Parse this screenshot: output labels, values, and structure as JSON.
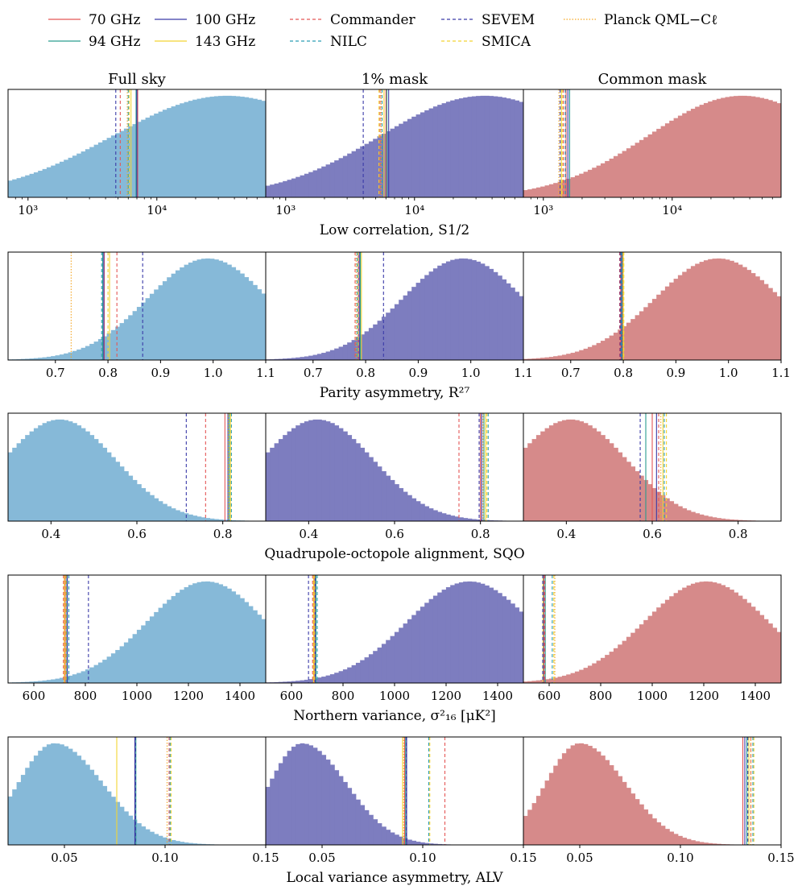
{
  "legend": [
    {
      "label": "70 GHz",
      "color": "#e45756",
      "dash": "solid"
    },
    {
      "label": "94 GHz",
      "color": "#2a9d8f",
      "dash": "solid"
    },
    {
      "label": "100 GHz",
      "color": "#3a3aa8",
      "dash": "solid"
    },
    {
      "label": "143 GHz",
      "color": "#f2d433",
      "dash": "solid"
    },
    {
      "label": "Commander",
      "color": "#e45756",
      "dash": "dashed"
    },
    {
      "label": "NILC",
      "color": "#2a9db4",
      "dash": "dashed"
    },
    {
      "label": "SEVEM",
      "color": "#3a3aa8",
      "dash": "dashed"
    },
    {
      "label": "SMICA",
      "color": "#f2d433",
      "dash": "dashed"
    },
    {
      "label": "Planck QML−Cℓ",
      "color": "#f5a623",
      "dash": "dotted"
    }
  ],
  "column_titles": [
    "Full sky",
    "1% mask",
    "Common mask"
  ],
  "column_colors": [
    "#86b9d8",
    "#7d7dbf",
    "#d68a8a"
  ],
  "chart_data": [
    {
      "type": "histogram",
      "statistic": "Low correlation, S1/2",
      "xlabel": "Low correlation, S1/2",
      "xscale": "log",
      "xlim": [
        700,
        70000
      ],
      "ticks": [
        1000,
        10000
      ],
      "tick_labels": [
        "10³",
        "10⁴"
      ],
      "panels": [
        {
          "column": "Full sky",
          "dist": {
            "center": 35000,
            "width": 2.3,
            "log": true
          },
          "lines": {
            "70 GHz": 7100,
            "94 GHz": 6900,
            "100 GHz": 7000,
            "143 GHz": 6300,
            "Commander": 5200,
            "NILC": 6000,
            "SEVEM": 4800,
            "SMICA": 6100,
            "Planck QML−Cℓ": 5900
          }
        },
        {
          "column": "1% mask",
          "dist": {
            "center": 35000,
            "width": 2.1,
            "log": true
          },
          "lines": {
            "70 GHz": 6000,
            "94 GHz": 6100,
            "100 GHz": 6300,
            "143 GHz": 5800,
            "Commander": 5400,
            "NILC": 5600,
            "SEVEM": 4000,
            "SMICA": 5300,
            "Planck QML−Cℓ": 5500
          }
        },
        {
          "column": "Common mask",
          "dist": {
            "center": 35000,
            "width": 1.9,
            "log": true
          },
          "lines": {
            "70 GHz": 1500,
            "94 GHz": 1600,
            "100 GHz": 1550,
            "143 GHz": 1380,
            "Commander": 1430,
            "NILC": 1480,
            "SEVEM": 1350,
            "SMICA": 1400,
            "Planck QML−Cℓ": 1320
          }
        }
      ]
    },
    {
      "type": "histogram",
      "statistic": "Parity asymmetry, R27",
      "xlabel": "Parity asymmetry, R²⁷",
      "xscale": "linear",
      "xlim": [
        0.61,
        1.1
      ],
      "ticks": [
        0.7,
        0.8,
        0.9,
        1.0,
        1.1
      ],
      "tick_labels": [
        "0.7",
        "0.8",
        "0.9",
        "1.0",
        "1.1"
      ],
      "panels": [
        {
          "column": "Full sky",
          "dist": {
            "center": 0.99,
            "width": 0.115
          },
          "lines": {
            "70 GHz": 0.793,
            "94 GHz": 0.79,
            "100 GHz": 0.792,
            "143 GHz": 0.803,
            "Commander": 0.817,
            "NILC": 0.788,
            "SEVEM": 0.866,
            "SMICA": 0.8,
            "Planck QML−Cℓ": 0.73
          }
        },
        {
          "column": "1% mask",
          "dist": {
            "center": 0.985,
            "width": 0.115
          },
          "lines": {
            "70 GHz": 0.786,
            "94 GHz": 0.79,
            "100 GHz": 0.788,
            "143 GHz": 0.792,
            "Commander": 0.78,
            "NILC": 0.784,
            "SEVEM": 0.834,
            "SMICA": 0.786,
            "Planck QML−Cℓ": 0.782
          }
        },
        {
          "column": "Common mask",
          "dist": {
            "center": 0.98,
            "width": 0.12
          },
          "lines": {
            "70 GHz": 0.795,
            "94 GHz": 0.798,
            "100 GHz": 0.797,
            "143 GHz": 0.8,
            "Commander": 0.793,
            "NILC": 0.796,
            "SEVEM": 0.794,
            "SMICA": 0.801,
            "Planck QML−Cℓ": 0.799
          }
        }
      ]
    },
    {
      "type": "histogram",
      "statistic": "Quadrupole-octopole alignment, SQO",
      "xlabel": "Quadrupole-octopole alignment, SQO",
      "xscale": "linear",
      "xlim": [
        0.3,
        0.9
      ],
      "ticks": [
        0.4,
        0.6,
        0.8
      ],
      "tick_labels": [
        "0.4",
        "0.6",
        "0.8"
      ],
      "panels": [
        {
          "column": "Full sky",
          "dist": {
            "center": 0.42,
            "width": 0.13
          },
          "lines": {
            "70 GHz": 0.805,
            "94 GHz": 0.815,
            "100 GHz": 0.812,
            "143 GHz": 0.818,
            "Commander": 0.76,
            "NILC": 0.82,
            "SEVEM": 0.715,
            "SMICA": 0.817,
            "Planck QML−Cℓ": 0.813
          }
        },
        {
          "column": "1% mask",
          "dist": {
            "center": 0.42,
            "width": 0.13
          },
          "lines": {
            "70 GHz": 0.8,
            "94 GHz": 0.808,
            "100 GHz": 0.803,
            "143 GHz": 0.812,
            "Commander": 0.75,
            "NILC": 0.818,
            "SEVEM": 0.797,
            "SMICA": 0.815,
            "Planck QML−Cℓ": 0.806
          }
        },
        {
          "column": "Common mask",
          "dist": {
            "center": 0.41,
            "width": 0.13
          },
          "lines": {
            "70 GHz": 0.6,
            "94 GHz": 0.585,
            "100 GHz": 0.61,
            "143 GHz": 0.625,
            "Commander": 0.615,
            "NILC": 0.628,
            "SEVEM": 0.572,
            "SMICA": 0.633,
            "Planck QML−Cℓ": 0.62
          }
        }
      ]
    },
    {
      "type": "histogram",
      "statistic": "Northern variance, σ²16 [μK²]",
      "xlabel": "Northern variance, σ²₁₆ [μK²]",
      "xscale": "linear",
      "xlim": [
        500,
        1500
      ],
      "ticks": [
        600,
        800,
        1000,
        1200,
        1400
      ],
      "tick_labels": [
        "600",
        "800",
        "1000",
        "1200",
        "1400"
      ],
      "panels": [
        {
          "column": "Full sky",
          "dist": {
            "center": 1270,
            "width": 230
          },
          "lines": {
            "70 GHz": 722,
            "94 GHz": 728,
            "100 GHz": 730,
            "143 GHz": 718,
            "Commander": 715,
            "NILC": 736,
            "SEVEM": 812,
            "SMICA": 725,
            "Planck QML−Cℓ": 720
          }
        },
        {
          "column": "1% mask",
          "dist": {
            "center": 1290,
            "width": 240
          },
          "lines": {
            "70 GHz": 688,
            "94 GHz": 695,
            "100 GHz": 692,
            "143 GHz": 686,
            "Commander": 682,
            "NILC": 700,
            "SEVEM": 666,
            "SMICA": 690,
            "Planck QML−Cℓ": 685
          }
        },
        {
          "column": "Common mask",
          "dist": {
            "center": 1210,
            "width": 240
          },
          "lines": {
            "70 GHz": 580,
            "94 GHz": 585,
            "100 GHz": 578,
            "143 GHz": 576,
            "Commander": 583,
            "NILC": 612,
            "SEVEM": 575,
            "SMICA": 618,
            "Planck QML−Cℓ": 622
          }
        }
      ]
    },
    {
      "type": "histogram",
      "statistic": "Local variance asymmetry, ALV",
      "xlabel": "Local variance asymmetry, ALV",
      "xscale": "linear",
      "xlim": [
        0.022,
        0.15
      ],
      "ticks": [
        0.05,
        0.1,
        0.15
      ],
      "tick_labels": [
        "0.05",
        "0.10",
        "0.15"
      ],
      "panels": [
        {
          "column": "Full sky",
          "dist": {
            "center": 0.045,
            "width": 0.018,
            "skew": 0.55
          },
          "lines": {
            "70 GHz": 0.085,
            "94 GHz": 0.0855,
            "100 GHz": 0.085,
            "143 GHz": 0.076,
            "Commander": 0.102,
            "NILC": 0.1025,
            "SEVEM": 0.0853,
            "SMICA": 0.103,
            "Planck QML−Cℓ": 0.101
          }
        },
        {
          "column": "1% mask",
          "dist": {
            "center": 0.04,
            "width": 0.016,
            "skew": 0.6
          },
          "lines": {
            "70 GHz": 0.091,
            "94 GHz": 0.0915,
            "100 GHz": 0.092,
            "143 GHz": 0.09,
            "Commander": 0.111,
            "NILC": 0.103,
            "SEVEM": 0.0918,
            "SMICA": 0.1035,
            "Planck QML−Cℓ": 0.0905
          }
        },
        {
          "column": "Common mask",
          "dist": {
            "center": 0.05,
            "width": 0.017,
            "skew": 0.55
          },
          "lines": {
            "70 GHz": 0.131,
            "94 GHz": 0.133,
            "100 GHz": 0.132,
            "143 GHz": 0.134,
            "Commander": 0.135,
            "NILC": 0.136,
            "SEVEM": 0.1335,
            "SMICA": 0.1365,
            "Planck QML−Cℓ": 0.135
          }
        }
      ]
    }
  ]
}
